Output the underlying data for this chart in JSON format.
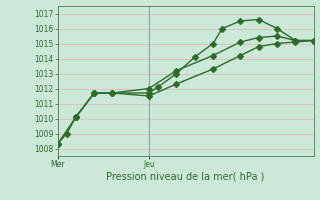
{
  "xlabel": "Pression niveau de la mer( hPa )",
  "background_color": "#cce8d8",
  "grid_color": "#e8b8b8",
  "line_color": "#2d6b2d",
  "vline_color": "#999999",
  "ylim": [
    1007.5,
    1017.5
  ],
  "yticks": [
    1008,
    1009,
    1010,
    1011,
    1012,
    1013,
    1014,
    1015,
    1016,
    1017
  ],
  "xtick_positions": [
    0,
    5
  ],
  "xtick_labels": [
    "Mer",
    "Jeu"
  ],
  "xlim": [
    0,
    14
  ],
  "ver_line_x": 5,
  "line1_x": [
    0,
    0.5,
    1,
    2,
    3,
    5,
    5.5,
    6.5,
    7.5,
    8.5,
    9,
    10,
    11,
    12,
    13,
    14
  ],
  "line1_y": [
    1008.3,
    1009.0,
    1010.1,
    1011.7,
    1011.7,
    1011.7,
    1012.1,
    1013.0,
    1014.1,
    1015.0,
    1016.0,
    1016.5,
    1016.6,
    1016.0,
    1015.2,
    1015.2
  ],
  "line2_x": [
    0,
    1,
    2,
    3,
    5,
    6.5,
    8.5,
    10,
    11,
    12,
    13,
    14
  ],
  "line2_y": [
    1008.3,
    1010.1,
    1011.7,
    1011.7,
    1011.5,
    1012.3,
    1013.3,
    1014.2,
    1014.8,
    1015.0,
    1015.1,
    1015.2
  ],
  "line3_x": [
    1,
    2,
    3,
    5,
    6.5,
    8.5,
    10,
    11,
    12,
    13,
    14
  ],
  "line3_y": [
    1010.1,
    1011.7,
    1011.7,
    1012.0,
    1013.2,
    1014.2,
    1015.1,
    1015.4,
    1015.5,
    1015.2,
    1015.2
  ],
  "marker_size": 3,
  "line_width": 1.0,
  "tick_fontsize": 5.5,
  "xlabel_fontsize": 7
}
